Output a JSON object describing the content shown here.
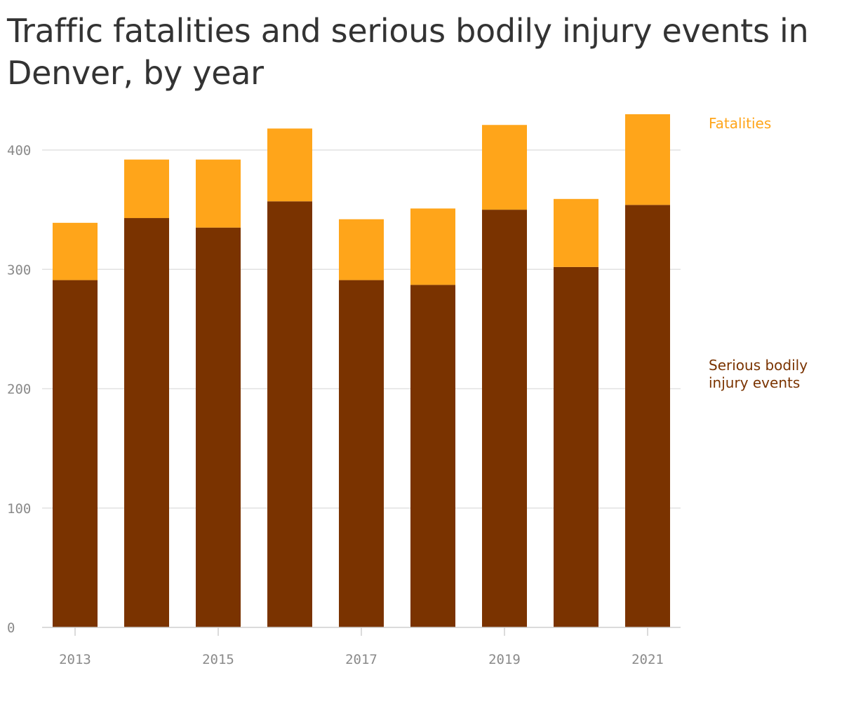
{
  "chart_data": {
    "type": "bar",
    "stacked": true,
    "title": "Traffic fatalities and serious bodily injury events in Denver, by year",
    "x": [
      2013,
      2014,
      2015,
      2016,
      2017,
      2018,
      2019,
      2020,
      2021
    ],
    "x_tick_labels": [
      "2013",
      "2015",
      "2017",
      "2019",
      "2021"
    ],
    "series": [
      {
        "name": "Serious bodily injury events",
        "label_lines": [
          "Serious bodily",
          "injury events"
        ],
        "color": "#7a3300",
        "values": [
          291,
          343,
          335,
          357,
          291,
          287,
          350,
          302,
          354
        ]
      },
      {
        "name": "Fatalities",
        "label_lines": [
          "Fatalities"
        ],
        "color": "#ffa51a",
        "values": [
          48,
          49,
          57,
          61,
          51,
          64,
          71,
          57,
          76
        ]
      }
    ],
    "ylim": [
      0,
      430
    ],
    "y_ticks": [
      0,
      100,
      200,
      300,
      400
    ],
    "grid": true,
    "legend_position": "right",
    "xlabel": "",
    "ylabel": ""
  }
}
